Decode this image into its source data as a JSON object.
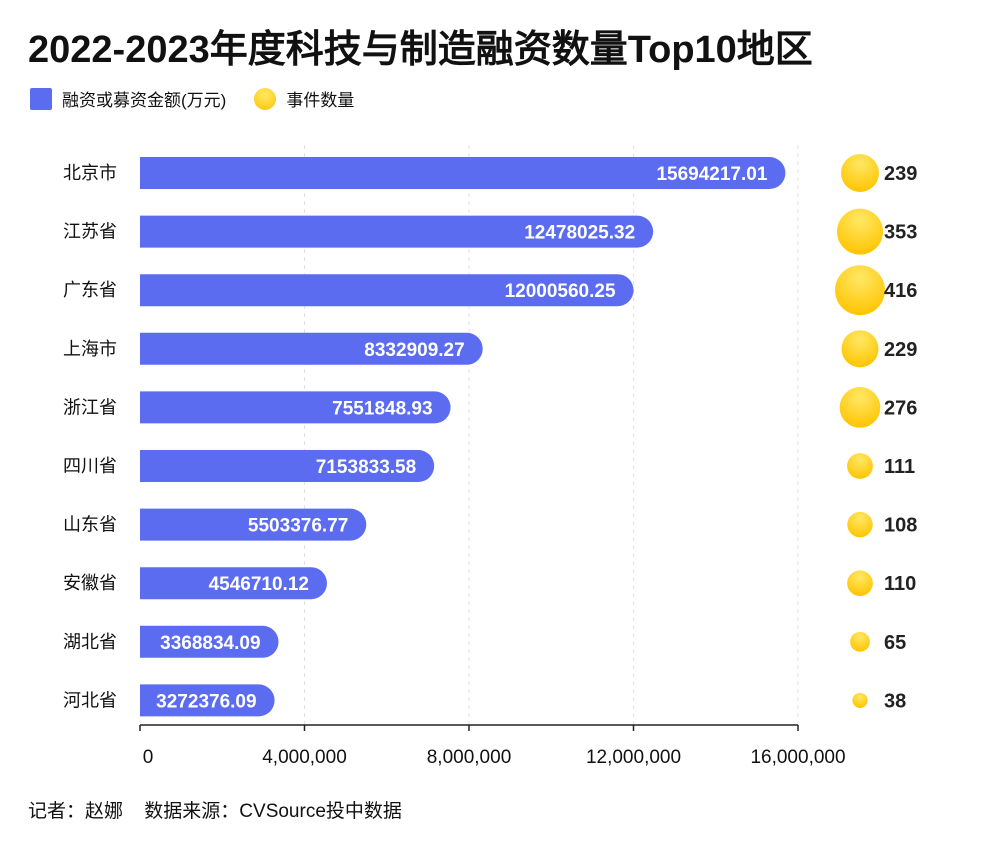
{
  "title": "2022-2023年度科技与制造融资数量Top10地区",
  "footer": {
    "author": "记者：赵娜",
    "source": "数据来源：CVSource投中数据"
  },
  "colors": {
    "bar": "#5b6cf0",
    "bubble_light": "#ffe866",
    "bubble_dark": "#ffc400",
    "axis": "#222222",
    "grid": "#e3e3e3"
  },
  "chart_data": {
    "type": "bar",
    "orientation": "horizontal",
    "categories": [
      "北京市",
      "江苏省",
      "广东省",
      "上海市",
      "浙江省",
      "四川省",
      "山东省",
      "安徽省",
      "湖北省",
      "河北省"
    ],
    "series": [
      {
        "name": "融资或募资金额(万元)",
        "values": [
          15694217.01,
          12478025.32,
          12000560.25,
          8332909.27,
          7551848.93,
          7153833.58,
          5503376.77,
          4546710.12,
          3368834.09,
          3272376.09
        ],
        "labels": [
          "15694217.01",
          "12478025.32",
          "12000560.25",
          "8332909.27",
          "7551848.93",
          "7153833.58",
          "5503376.77",
          "4546710.12",
          "3368834.09",
          "3272376.09"
        ]
      },
      {
        "name": "事件数量",
        "type": "bubble",
        "values": [
          239,
          353,
          416,
          229,
          276,
          111,
          108,
          110,
          65,
          38
        ]
      }
    ],
    "xlim": [
      0,
      16000000
    ],
    "xticks": [
      0,
      4000000,
      8000000,
      12000000,
      16000000
    ],
    "xtick_labels": [
      "0",
      "4,000,000",
      "8,000,000",
      "12,000,000",
      "16,000,000"
    ],
    "grid": "vertical-dashed",
    "legend": "top-left"
  }
}
